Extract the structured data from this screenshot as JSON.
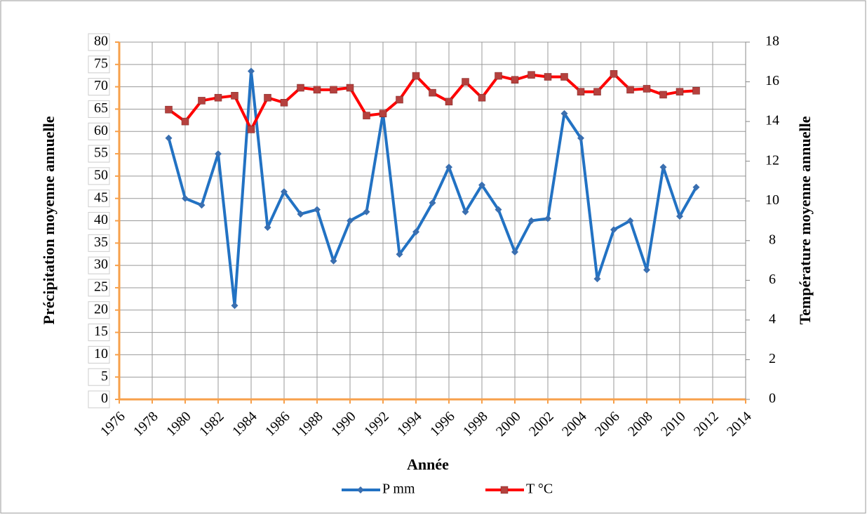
{
  "chart_data": {
    "type": "line",
    "x_label": "Année",
    "y_label": "Précipitation  moyenne annuelle",
    "y2_label": "Température moyenne  annuelle",
    "categories": [
      "1976",
      null,
      "1978",
      null,
      "1980",
      null,
      "1982",
      null,
      "1984",
      null,
      "1986",
      null,
      "1988",
      null,
      "1990",
      null,
      "1992",
      null,
      "1994",
      null,
      "1996",
      null,
      "1998",
      null,
      "2000",
      null,
      "2002",
      null,
      "2004",
      null,
      "2006",
      null,
      "2008",
      null,
      "2010",
      null,
      "2012",
      null,
      "2014"
    ],
    "series": [
      {
        "name": "P  mm",
        "color": "#2272c3",
        "marker_color": "#3a6fb0",
        "marker": "diamond",
        "values": [
          null,
          null,
          null,
          58.5,
          45,
          43.5,
          55,
          21,
          73.5,
          38.5,
          46.5,
          41.5,
          42.5,
          31,
          40,
          42,
          64,
          32.5,
          37.5,
          44,
          52,
          42,
          48,
          42.5,
          33,
          40,
          40.5,
          64,
          58.5,
          27,
          38,
          40,
          29,
          52,
          41,
          47.5,
          null,
          null,
          null
        ]
      },
      {
        "name": "T  °C",
        "color": "#ff0000",
        "marker_color": "#b5413e",
        "marker": "square",
        "axis": "y2",
        "values": [
          null,
          null,
          null,
          14.6,
          14.0,
          15.05,
          15.2,
          15.3,
          13.6,
          15.2,
          14.95,
          15.7,
          15.6,
          15.6,
          15.7,
          14.3,
          14.4,
          15.1,
          16.3,
          15.45,
          15.0,
          16.0,
          15.2,
          16.3,
          16.1,
          16.35,
          16.25,
          16.25,
          15.5,
          15.5,
          16.4,
          15.6,
          15.65,
          15.35,
          15.5,
          15.55,
          null,
          null,
          null
        ]
      }
    ],
    "ylim": [
      0,
      80
    ],
    "yticks": [
      0,
      5,
      10,
      15,
      20,
      25,
      30,
      35,
      40,
      45,
      50,
      55,
      60,
      65,
      70,
      75,
      80
    ],
    "y2lim": [
      0,
      18
    ],
    "y2ticks": [
      0,
      2,
      4,
      6,
      8,
      10,
      12,
      14,
      16,
      18
    ],
    "grid": true,
    "legend": "bottom"
  }
}
